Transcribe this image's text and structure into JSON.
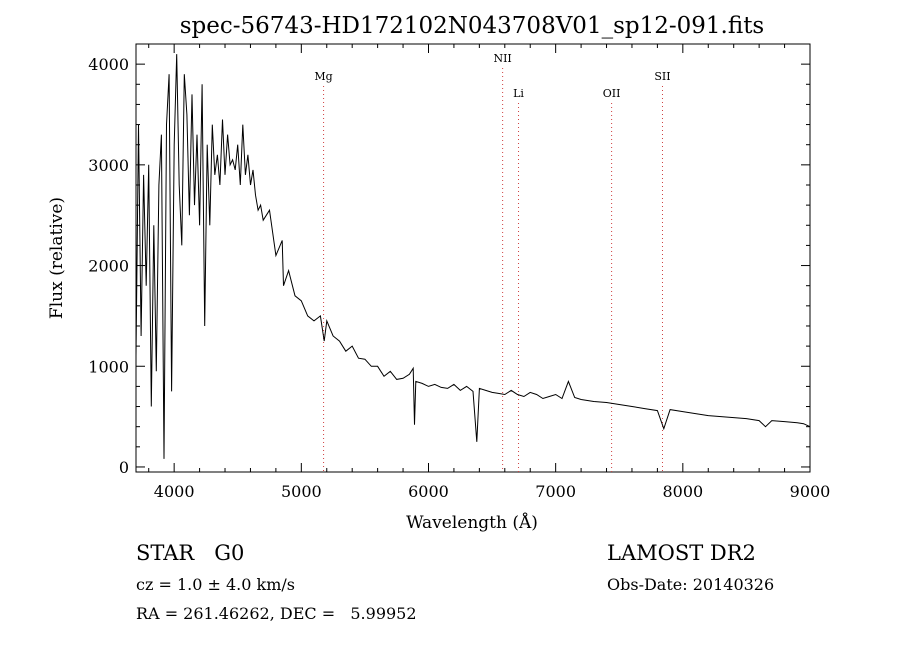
{
  "chart_data": {
    "type": "line",
    "title": "spec-56743-HD172102N043708V01_sp12-091.fits",
    "xlabel": "Wavelength (Å)",
    "ylabel": "Flux (relative)",
    "xlim": [
      3700,
      9000
    ],
    "ylim": [
      -50,
      4200
    ],
    "x_ticks": [
      4000,
      5000,
      6000,
      7000,
      8000,
      9000
    ],
    "y_ticks": [
      0,
      1000,
      2000,
      3000,
      4000
    ],
    "grid": false,
    "series": [
      {
        "x": [
          3700,
          3720,
          3740,
          3760,
          3780,
          3800,
          3820,
          3840,
          3860,
          3880,
          3900,
          3920,
          3940,
          3960,
          3980,
          4000,
          4020,
          4040,
          4060,
          4080,
          4100,
          4120,
          4140,
          4160,
          4180,
          4200,
          4220,
          4240,
          4260,
          4280,
          4300,
          4320,
          4340,
          4360,
          4380,
          4400,
          4420,
          4440,
          4460,
          4480,
          4500,
          4520,
          4540,
          4560,
          4580,
          4600,
          4620,
          4640,
          4660,
          4680,
          4700,
          4750,
          4800,
          4850,
          4860,
          4900,
          4950,
          5000,
          5050,
          5100,
          5150,
          5180,
          5200,
          5250,
          5300,
          5350,
          5400,
          5450,
          5500,
          5550,
          5600,
          5650,
          5700,
          5750,
          5800,
          5850,
          5880,
          5890,
          5900,
          5950,
          6000,
          6050,
          6100,
          6150,
          6200,
          6250,
          6300,
          6350,
          6380,
          6400,
          6450,
          6500,
          6550,
          6600,
          6650,
          6700,
          6750,
          6800,
          6850,
          6900,
          6950,
          7000,
          7050,
          7100,
          7150,
          7200,
          7300,
          7400,
          7500,
          7600,
          7700,
          7800,
          7850,
          7900,
          8000,
          8100,
          8200,
          8300,
          8400,
          8500,
          8600,
          8650,
          8700,
          8800,
          8900,
          8950,
          9000
        ],
        "y": [
          1100,
          3400,
          1300,
          2900,
          1800,
          3000,
          600,
          2400,
          950,
          2800,
          3300,
          80,
          3400,
          3900,
          750,
          3200,
          4100,
          2800,
          2200,
          3900,
          3500,
          2500,
          3700,
          2600,
          3300,
          2400,
          3800,
          1400,
          3200,
          2400,
          3400,
          2900,
          3100,
          2800,
          3450,
          2900,
          3300,
          3000,
          3050,
          2950,
          3200,
          2800,
          3400,
          2900,
          3100,
          2800,
          2950,
          2700,
          2550,
          2600,
          2450,
          2550,
          2100,
          2250,
          1800,
          1950,
          1700,
          1650,
          1500,
          1450,
          1500,
          1250,
          1450,
          1300,
          1250,
          1150,
          1200,
          1080,
          1070,
          1000,
          1000,
          900,
          950,
          870,
          880,
          920,
          980,
          420,
          850,
          830,
          800,
          820,
          790,
          780,
          820,
          760,
          800,
          750,
          250,
          780,
          760,
          740,
          730,
          720,
          760,
          720,
          700,
          740,
          720,
          680,
          700,
          720,
          680,
          850,
          690,
          670,
          650,
          640,
          620,
          600,
          580,
          560,
          380,
          570,
          550,
          530,
          510,
          500,
          490,
          480,
          460,
          400,
          460,
          450,
          440,
          430,
          400
        ]
      }
    ],
    "annotations": [
      {
        "label": "Mg",
        "x": 5175
      },
      {
        "label": "NII",
        "x": 6583
      },
      {
        "label": "Li",
        "x": 6708
      },
      {
        "label": "OII",
        "x": 7440
      },
      {
        "label": "SII",
        "x": 7840
      }
    ]
  },
  "info": {
    "class_label": "STAR",
    "subclass": "G0",
    "survey": "LAMOST DR2",
    "cz": "cz = 1.0 ± 4.0 km/s",
    "obs_date": "Obs-Date: 20140326",
    "coords": "RA = 261.46262, DEC =   5.99952"
  }
}
